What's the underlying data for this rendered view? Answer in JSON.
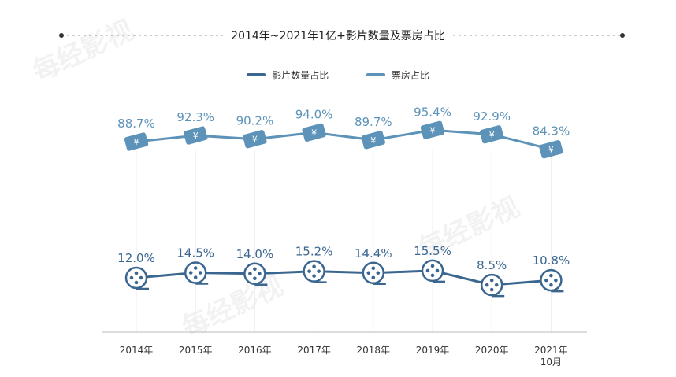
{
  "chart_data": {
    "type": "line",
    "title": "2014年~2021年1亿+影片数量及票房占比",
    "categories": [
      "2014年",
      "2015年",
      "2016年",
      "2017年",
      "2018年",
      "2019年",
      "2020年",
      "2021年\n10月"
    ],
    "series": [
      {
        "name": "影片数量占比",
        "values": [
          12.0,
          14.5,
          14.0,
          15.2,
          14.4,
          15.5,
          8.5,
          10.8
        ],
        "labels": [
          "12.0%",
          "14.5%",
          "14.0%",
          "15.2%",
          "14.4%",
          "15.5%",
          "8.5%",
          "10.8%"
        ],
        "color": "#3b6690",
        "marker": "film-reel"
      },
      {
        "name": "票房占比",
        "values": [
          88.7,
          92.3,
          90.2,
          94.0,
          89.7,
          95.4,
          92.9,
          84.3
        ],
        "labels": [
          "88.7%",
          "92.3%",
          "90.2%",
          "94.0%",
          "89.7%",
          "95.4%",
          "92.9%",
          "84.3%"
        ],
        "color": "#5d93b9",
        "marker": "ticket-yuan"
      }
    ],
    "legend": "top-center",
    "grid": false
  },
  "watermark": "每经影视"
}
